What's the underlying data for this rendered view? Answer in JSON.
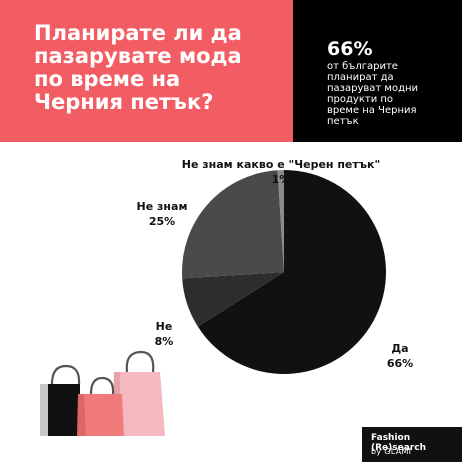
{
  "header": {
    "title": "Планирате ли да\nпазарувате мода\nпо време на\nЧерния петък?",
    "stat_value": "66%",
    "stat_caption": "от българите\nпланират да\nпазаруват модни\nпродукти по\nвреме на Черния\nпетък"
  },
  "chart_data": {
    "type": "pie",
    "slices": [
      {
        "label": "Да",
        "value": 66,
        "percent_label": "66%",
        "color": "#111111"
      },
      {
        "label": "Не",
        "value": 8,
        "percent_label": "8%",
        "color": "#2d2d2d"
      },
      {
        "label": "Не знам",
        "value": 25,
        "percent_label": "25%",
        "color": "#4a4a4a"
      },
      {
        "label": "Не знам какво е \"Черен петък\"",
        "value": 1,
        "percent_label": "1%",
        "color": "#8c8c8c"
      }
    ]
  },
  "footer": {
    "brand_line1": "Fashion (Re)search",
    "brand_line2": "by GLAMI"
  },
  "colors": {
    "header_left": "#f25d63",
    "header_right": "#000000",
    "bag_pink": "#f5b8bf",
    "bag_coral": "#f07a7a",
    "bag_black": "#111111",
    "bag_gray": "#c7c7c7"
  }
}
